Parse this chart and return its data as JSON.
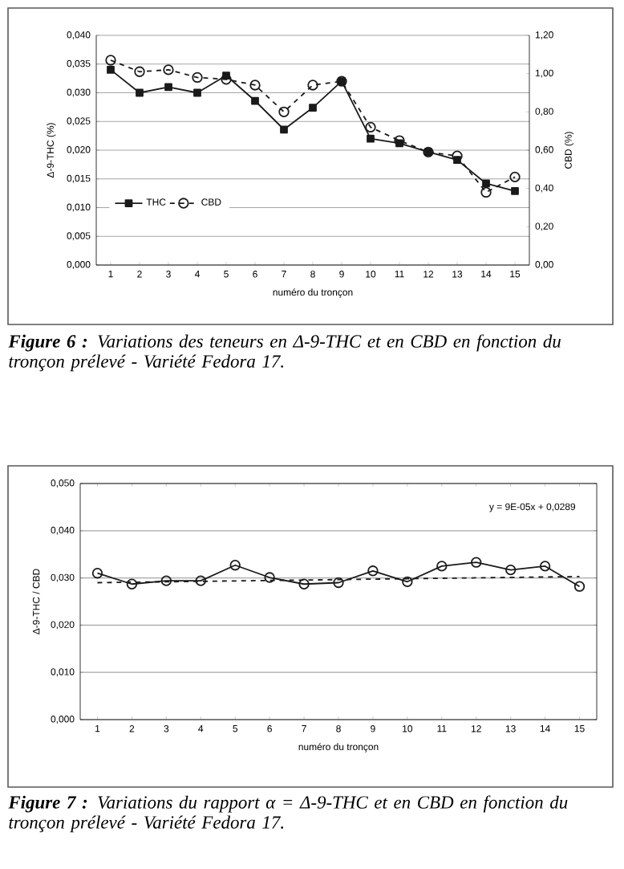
{
  "chart_data": [
    {
      "type": "line",
      "categories": [
        "1",
        "2",
        "3",
        "4",
        "5",
        "6",
        "7",
        "8",
        "9",
        "10",
        "11",
        "12",
        "13",
        "14",
        "15"
      ],
      "series": [
        {
          "name": "THC",
          "color": "#1a1a1a",
          "marker": "square",
          "line_style": "solid",
          "values": [
            0.034,
            0.03,
            0.031,
            0.03,
            0.033,
            0.0286,
            0.0236,
            0.0274,
            0.032,
            0.022,
            0.0212,
            0.0197,
            0.0183,
            0.0142,
            0.0129
          ]
        },
        {
          "name": "CBD",
          "color": "#1a1a1a",
          "marker": "circle",
          "line_style": "dashed",
          "axis": "y2",
          "values": [
            1.07,
            1.01,
            1.02,
            0.98,
            0.97,
            0.94,
            0.8,
            0.94,
            0.96,
            0.72,
            0.65,
            0.59,
            0.57,
            0.38,
            0.46
          ]
        }
      ],
      "ylim": [
        0,
        0.04
      ],
      "yticks": [
        {
          "value": 0,
          "label": "0,000"
        },
        {
          "value": 0.005,
          "label": "0,005"
        },
        {
          "value": 0.01,
          "label": "0,010"
        },
        {
          "value": 0.015,
          "label": "0,015"
        },
        {
          "value": 0.02,
          "label": "0,020"
        },
        {
          "value": 0.025,
          "label": "0,025"
        },
        {
          "value": 0.03,
          "label": "0,030"
        },
        {
          "value": 0.035,
          "label": "0,035"
        },
        {
          "value": 0.04,
          "label": "0,040"
        }
      ],
      "y2lim": [
        0,
        1.2
      ],
      "y2ticks": [
        {
          "value": 0,
          "label": "0,00"
        },
        {
          "value": 0.2,
          "label": "0,20"
        },
        {
          "value": 0.4,
          "label": "0,40"
        },
        {
          "value": 0.6,
          "label": "0,60"
        },
        {
          "value": 0.8,
          "label": "0,80"
        },
        {
          "value": 1.0,
          "label": "1,00"
        },
        {
          "value": 1.2,
          "label": "1,20"
        }
      ],
      "xlabel": "numéro du tronçon",
      "ylabel": "Δ-9-THC (%)",
      "y2label": "CBD (%)",
      "grid": "y",
      "legend": "bottom left",
      "annotations": [
        "**Figure 6 :** Variations des teneurs en Δ-9-THC et en CBD en fonction du tronçon prélevé - Variété Fedora 17."
      ]
    },
    {
      "type": "line",
      "x": [
        1,
        2,
        3,
        4,
        5,
        6,
        7,
        8,
        9,
        10,
        11,
        12,
        13,
        14,
        15
      ],
      "series": [
        {
          "color": "#1a1a1a",
          "marker": "circle",
          "line_style": "solid",
          "values": [
            0.031,
            0.0287,
            0.0294,
            0.0294,
            0.0327,
            0.0301,
            0.0287,
            0.029,
            0.0315,
            0.0292,
            0.0325,
            0.0333,
            0.0317,
            0.0325,
            0.0282
          ]
        },
        {
          "type": "line",
          "color": "#1a1a1a",
          "marker": "none",
          "line_style": "dashed",
          "x": [
            1,
            15
          ],
          "values": [
            0.029,
            0.0303
          ]
        }
      ],
      "xlim": [
        0.5,
        15.5
      ],
      "xticks": [
        1,
        2,
        3,
        4,
        5,
        6,
        7,
        8,
        9,
        10,
        11,
        12,
        13,
        14,
        15
      ],
      "ylim": [
        0,
        0.05
      ],
      "yticks": [
        {
          "value": 0,
          "label": "0,000"
        },
        {
          "value": 0.01,
          "label": "0,010"
        },
        {
          "value": 0.02,
          "label": "0,020"
        },
        {
          "value": 0.03,
          "label": "0,030"
        },
        {
          "value": 0.04,
          "label": "0,040"
        },
        {
          "value": 0.05,
          "label": "0,050"
        }
      ],
      "xlabel": "numéro du tronçon",
      "ylabel": "Δ-9-THC / CBD",
      "grid": "y",
      "annotations": [
        "y = 9E-05x + 0,0289",
        "**Figure 7 :** Variations du rapport α = Δ-9-THC et en CBD en fonction du tronçon prélevé - Variété Fedora 17."
      ]
    }
  ]
}
